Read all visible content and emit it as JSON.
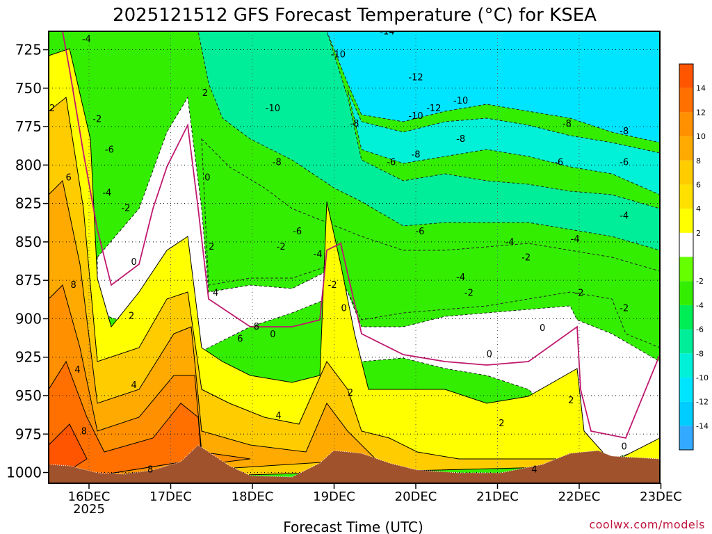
{
  "chart_data": {
    "type": "heatmap",
    "title": "2025121512 GFS Forecast Temperature (°C) for KSEA",
    "xlabel": "Forecast Time (UTC)",
    "ylabel": "",
    "x_ticks": [
      "16DEC",
      "17DEC",
      "18DEC",
      "19DEC",
      "20DEC",
      "21DEC",
      "22DEC",
      "23DEC"
    ],
    "x_year_label": "2025",
    "xlim": [
      "15DEC 12Z",
      "23DEC 00Z"
    ],
    "y_ticks": [
      725,
      750,
      775,
      800,
      825,
      850,
      875,
      900,
      925,
      950,
      975,
      1000
    ],
    "ylim": [
      1007,
      713
    ],
    "y_scale": "inverted pressure (hPa)",
    "grid": "dotted",
    "colorbar": {
      "levels": [
        -14,
        -12,
        -10,
        -8,
        -6,
        -4,
        -2,
        2,
        4,
        6,
        8,
        10,
        12,
        14
      ],
      "colors": [
        "#33aaff",
        "#00ccff",
        "#00e5ff",
        "#00f0d8",
        "#00ee99",
        "#00ee55",
        "#33ee00",
        "#66ff00",
        "#ffffff",
        "#ffff00",
        "#ffe000",
        "#ffcc00",
        "#ffaa00",
        "#ff9000",
        "#ff7000",
        "#ff5500"
      ],
      "label_positions": "right"
    },
    "freezing_line_color": "#c0186f",
    "terrain_color": "#a0522d",
    "columns": [
      {
        "x": 0.0,
        "bands": [
          4,
          6,
          7,
          8,
          2,
          0,
          -2,
          -4
        ]
      },
      {
        "x": 0.1,
        "bands": [
          6,
          8,
          10,
          12,
          4,
          2,
          -2,
          -4
        ]
      },
      {
        "x": 0.2,
        "bands": [
          8,
          10,
          12,
          14,
          6,
          2,
          0,
          -4
        ]
      },
      {
        "x": 0.3,
        "bands": [
          8,
          10,
          12,
          14,
          6,
          2,
          0,
          -2
        ]
      },
      {
        "x": 0.4,
        "bands": [
          6,
          8,
          10,
          12,
          4,
          2,
          0,
          -2
        ]
      },
      {
        "x": 0.5,
        "bands": [
          4,
          6,
          8,
          10,
          4,
          2,
          0,
          -2
        ]
      },
      {
        "x": 0.6,
        "bands": [
          2,
          4,
          6,
          8,
          2,
          0,
          -2,
          -4
        ]
      },
      {
        "x": 0.7,
        "bands": [
          2,
          4,
          6,
          6,
          2,
          0,
          -2,
          -4
        ]
      }
    ],
    "contour_labels": [
      {
        "t": 0.05,
        "p": 765,
        "v": "2"
      },
      {
        "t": 0.25,
        "p": 810,
        "v": "6"
      },
      {
        "t": 0.31,
        "p": 880,
        "v": "8"
      },
      {
        "t": 0.36,
        "p": 935,
        "v": "4"
      },
      {
        "t": 0.44,
        "p": 975,
        "v": "8"
      },
      {
        "t": 0.47,
        "p": 720,
        "v": "-4"
      },
      {
        "t": 0.6,
        "p": 772,
        "v": "-2"
      },
      {
        "t": 0.75,
        "p": 792,
        "v": "-6"
      },
      {
        "t": 0.72,
        "p": 820,
        "v": "-4"
      },
      {
        "t": 0.95,
        "p": 830,
        "v": "-2"
      },
      {
        "t": 1.05,
        "p": 865,
        "v": "0"
      },
      {
        "t": 1.02,
        "p": 900,
        "v": "2"
      },
      {
        "t": 1.05,
        "p": 945,
        "v": "4"
      },
      {
        "t": 1.25,
        "p": 1000,
        "v": "8"
      },
      {
        "t": 1.92,
        "p": 755,
        "v": "2"
      },
      {
        "t": 1.95,
        "p": 810,
        "v": "0"
      },
      {
        "t": 2.0,
        "p": 855,
        "v": "2"
      },
      {
        "t": 2.05,
        "p": 885,
        "v": "4"
      },
      {
        "t": 2.35,
        "p": 915,
        "v": "6"
      },
      {
        "t": 2.55,
        "p": 907,
        "v": "8"
      },
      {
        "t": 2.75,
        "p": 912,
        "v": "0"
      },
      {
        "t": 2.82,
        "p": 965,
        "v": "4"
      },
      {
        "t": 2.85,
        "p": 855,
        "v": "-2"
      },
      {
        "t": 2.75,
        "p": 765,
        "v": "-10"
      },
      {
        "t": 2.8,
        "p": 800,
        "v": "-8"
      },
      {
        "t": 3.05,
        "p": 845,
        "v": "-6"
      },
      {
        "t": 3.3,
        "p": 860,
        "v": "-4"
      },
      {
        "t": 3.48,
        "p": 880,
        "v": "-2"
      },
      {
        "t": 3.62,
        "p": 895,
        "v": "0"
      },
      {
        "t": 3.7,
        "p": 950,
        "v": "2"
      },
      {
        "t": 4.2,
        "p": 800,
        "v": "-6"
      },
      {
        "t": 4.15,
        "p": 715,
        "v": "-14"
      },
      {
        "t": 4.5,
        "p": 745,
        "v": "-12"
      },
      {
        "t": 4.5,
        "p": 770,
        "v": "-10"
      },
      {
        "t": 4.5,
        "p": 795,
        "v": "-8"
      },
      {
        "t": 3.55,
        "p": 730,
        "v": "-10"
      },
      {
        "t": 3.75,
        "p": 775,
        "v": "-8"
      },
      {
        "t": 4.55,
        "p": 845,
        "v": "-6"
      },
      {
        "t": 5.05,
        "p": 875,
        "v": "-4"
      },
      {
        "t": 5.15,
        "p": 885,
        "v": "-2"
      },
      {
        "t": 5.4,
        "p": 925,
        "v": "0"
      },
      {
        "t": 5.55,
        "p": 970,
        "v": "2"
      },
      {
        "t": 5.95,
        "p": 1000,
        "v": "4"
      },
      {
        "t": 4.72,
        "p": 765,
        "v": "-12"
      },
      {
        "t": 5.05,
        "p": 760,
        "v": "-10"
      },
      {
        "t": 5.05,
        "p": 785,
        "v": "-8"
      },
      {
        "t": 5.65,
        "p": 852,
        "v": "-4"
      },
      {
        "t": 5.85,
        "p": 862,
        "v": "-2"
      },
      {
        "t": 6.05,
        "p": 908,
        "v": "0"
      },
      {
        "t": 6.4,
        "p": 955,
        "v": "2"
      },
      {
        "t": 6.35,
        "p": 775,
        "v": "-8"
      },
      {
        "t": 6.25,
        "p": 800,
        "v": "-6"
      },
      {
        "t": 6.45,
        "p": 850,
        "v": "-4"
      },
      {
        "t": 6.5,
        "p": 885,
        "v": "-2"
      },
      {
        "t": 7.05,
        "p": 780,
        "v": "-8"
      },
      {
        "t": 7.05,
        "p": 800,
        "v": "-6"
      },
      {
        "t": 7.05,
        "p": 835,
        "v": "-4"
      },
      {
        "t": 7.05,
        "p": 895,
        "v": "-2"
      },
      {
        "t": 7.05,
        "p": 985,
        "v": "0"
      }
    ]
  },
  "footer": {
    "credit": "coolwx.com/models"
  }
}
